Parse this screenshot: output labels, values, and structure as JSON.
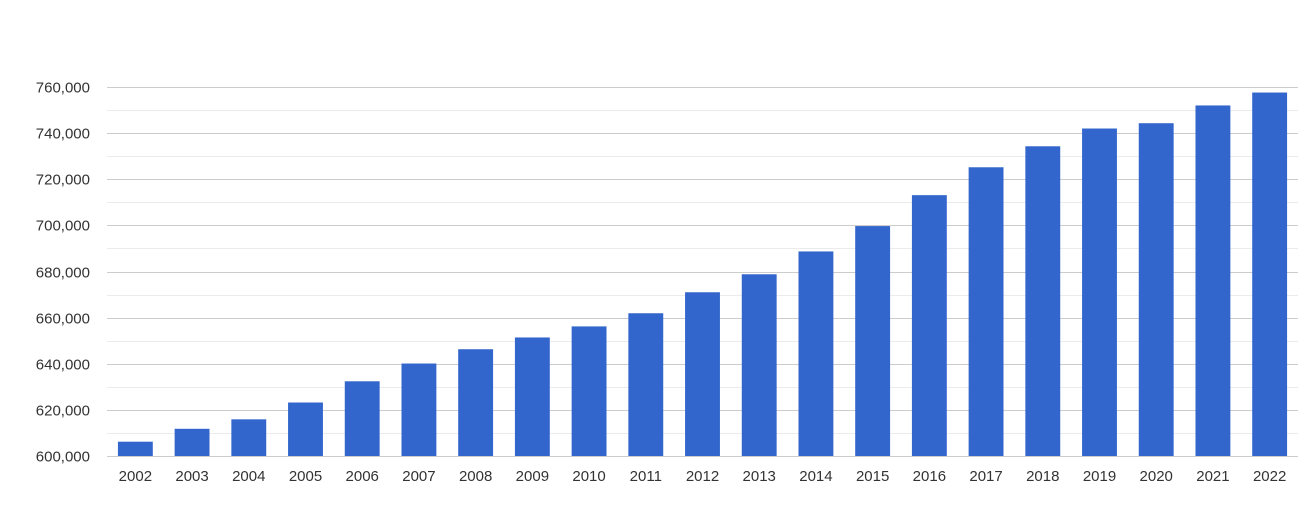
{
  "chart_data": {
    "type": "bar",
    "title": "",
    "xlabel": "",
    "ylabel": "",
    "categories": [
      "2002",
      "2003",
      "2004",
      "2005",
      "2006",
      "2007",
      "2008",
      "2009",
      "2010",
      "2011",
      "2012",
      "2013",
      "2014",
      "2015",
      "2016",
      "2017",
      "2018",
      "2019",
      "2020",
      "2021",
      "2022"
    ],
    "values": [
      606200,
      611800,
      615900,
      623200,
      632400,
      640100,
      646300,
      651400,
      656200,
      661900,
      671000,
      678800,
      688700,
      699700,
      713100,
      725200,
      734300,
      742000,
      744300,
      752000,
      757600
    ],
    "ylim": [
      600000,
      760000
    ],
    "yticks": [
      600000,
      620000,
      640000,
      660000,
      680000,
      700000,
      720000,
      740000,
      760000
    ],
    "ytick_labels": [
      "600,000",
      "620,000",
      "640,000",
      "660,000",
      "680,000",
      "700,000",
      "720,000",
      "740,000",
      "760,000"
    ],
    "grid": true,
    "minor_grid": true,
    "legend": "none",
    "bar_color": "#3366cc",
    "grid_color": "#cccccc",
    "minor_grid_color": "#ebebeb"
  }
}
